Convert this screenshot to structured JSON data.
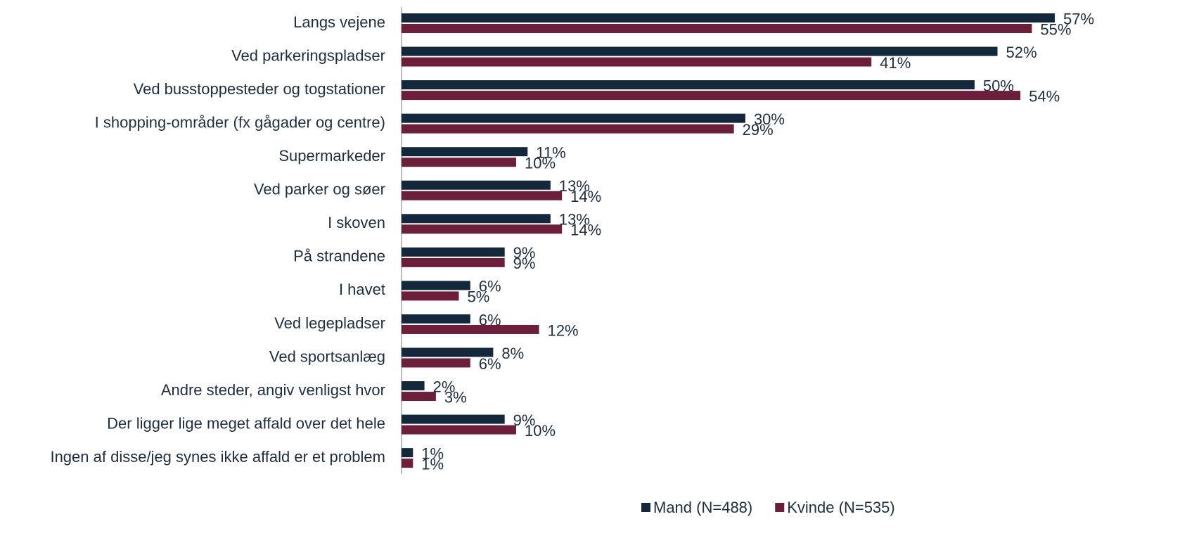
{
  "chart_data": {
    "type": "bar",
    "orientation": "horizontal",
    "categories": [
      "Langs vejene",
      "Ved parkeringspladser",
      "Ved busstoppesteder og togstationer",
      "I shopping-områder (fx gågader og centre)",
      "Supermarkeder",
      "Ved parker og søer",
      "I skoven",
      "På strandene",
      "I havet",
      "Ved legepladser",
      "Ved sportsanlæg",
      "Andre steder, angiv venligst hvor",
      "Der ligger lige meget affald over det hele",
      "Ingen af disse/jeg synes ikke affald er et problem"
    ],
    "series": [
      {
        "name": "Mand (N=488)",
        "color": "#14283c",
        "values": [
          57,
          52,
          50,
          30,
          11,
          13,
          13,
          9,
          6,
          6,
          8,
          2,
          9,
          1
        ],
        "value_labels": [
          "57%",
          "52%",
          "50%",
          "30%",
          "11%",
          "13%",
          "13%",
          "9%",
          "6%",
          "6%",
          "8%",
          "2%",
          "9%",
          "1%"
        ]
      },
      {
        "name": "Kvinde (N=535)",
        "color": "#6b1f3a",
        "values": [
          55,
          41,
          54,
          29,
          10,
          14,
          14,
          9,
          5,
          12,
          6,
          3,
          10,
          1
        ],
        "value_labels": [
          "55%",
          "41%",
          "54%",
          "29%",
          "10%",
          "14%",
          "14%",
          "9%",
          "5%",
          "12%",
          "6%",
          "3%",
          "10%",
          "1%"
        ]
      }
    ],
    "legend": "bottom"
  }
}
